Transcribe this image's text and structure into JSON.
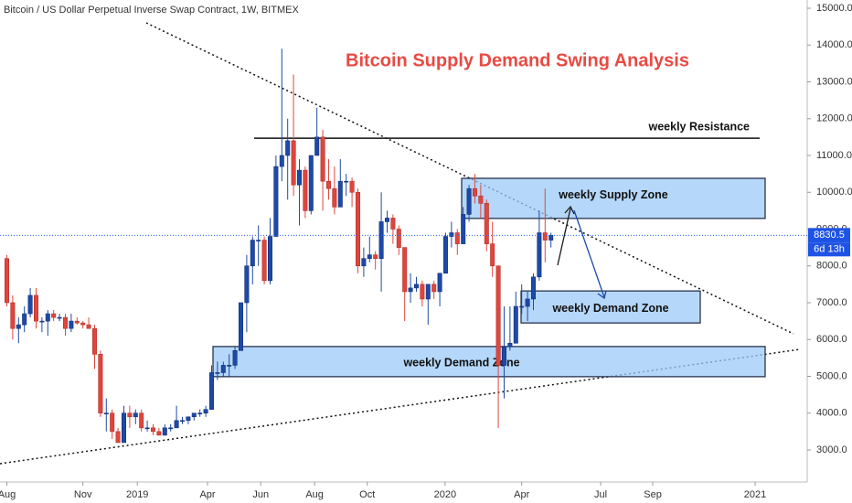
{
  "chart_data": {
    "type": "candlestick",
    "header": "Bitcoin / US Dollar Perpetual Inverse Swap Contract, 1W, BITMEX",
    "title": "Bitcoin Supply Demand Swing Analysis",
    "up_color": "#1d4aa8",
    "down_color": "#e0463d",
    "ylim": [
      2130,
      15224
    ],
    "yticks": [
      {
        "value": 3000,
        "label": "3000.0"
      },
      {
        "value": 4000,
        "label": "4000.0"
      },
      {
        "value": 5000,
        "label": "5000.0"
      },
      {
        "value": 6000,
        "label": "6000.0"
      },
      {
        "value": 7000,
        "label": "7000.0"
      },
      {
        "value": 8000,
        "label": "8000.0"
      },
      {
        "value": 9000,
        "label": "9000.0"
      },
      {
        "value": 10000,
        "label": "10000.0"
      },
      {
        "value": 11000,
        "label": "11000.0"
      },
      {
        "value": 12000,
        "label": "12000.0"
      },
      {
        "value": 13000,
        "label": "13000.0"
      },
      {
        "value": 14000,
        "label": "14000.0"
      },
      {
        "value": 15000,
        "label": "15000.0"
      }
    ],
    "xlim": [
      -1.17,
      136.8
    ],
    "xticks": [
      {
        "value": 0,
        "label": "Aug"
      },
      {
        "value": 13,
        "label": "Nov"
      },
      {
        "value": 22.3,
        "label": "2019"
      },
      {
        "value": 34.3,
        "label": "Apr"
      },
      {
        "value": 43.4,
        "label": "Jun"
      },
      {
        "value": 52.6,
        "label": "Aug"
      },
      {
        "value": 61.6,
        "label": "Oct"
      },
      {
        "value": 74.9,
        "label": "2020"
      },
      {
        "value": 88,
        "label": "Apr"
      },
      {
        "value": 101.5,
        "label": "Jul"
      },
      {
        "value": 110.4,
        "label": "Sep"
      },
      {
        "value": 127.9,
        "label": "2021"
      }
    ],
    "ohlc": [
      [
        8200,
        8300,
        6900,
        7000
      ],
      [
        7000,
        7200,
        6000,
        6300
      ],
      [
        6300,
        6600,
        5900,
        6400
      ],
      [
        6400,
        6900,
        6200,
        6700
      ],
      [
        6700,
        7400,
        6600,
        7200
      ],
      [
        7200,
        7400,
        6300,
        6500
      ],
      [
        6500,
        6600,
        6200,
        6500
      ],
      [
        6500,
        6800,
        6100,
        6700
      ],
      [
        6700,
        6800,
        6500,
        6600
      ],
      [
        6600,
        6700,
        6500,
        6600
      ],
      [
        6600,
        6700,
        6100,
        6300
      ],
      [
        6300,
        6700,
        6200,
        6500
      ],
      [
        6500,
        6600,
        6400,
        6450
      ],
      [
        6450,
        6500,
        6300,
        6400
      ],
      [
        6400,
        6600,
        6300,
        6300
      ],
      [
        6300,
        6400,
        5200,
        5600
      ],
      [
        5600,
        5700,
        3900,
        4000
      ],
      [
        4000,
        4400,
        3500,
        4000
      ],
      [
        4000,
        4100,
        3300,
        3500
      ],
      [
        3500,
        3600,
        3200,
        3200
      ],
      [
        3200,
        4200,
        3200,
        4000
      ],
      [
        4000,
        4200,
        3600,
        3900
      ],
      [
        3900,
        4100,
        3700,
        4000
      ],
      [
        4000,
        4100,
        3500,
        3600
      ],
      [
        3600,
        3800,
        3500,
        3600
      ],
      [
        3600,
        3700,
        3400,
        3500
      ],
      [
        3500,
        3600,
        3400,
        3400
      ],
      [
        3400,
        3700,
        3400,
        3600
      ],
      [
        3600,
        3700,
        3500,
        3600
      ],
      [
        3600,
        4200,
        3600,
        3800
      ],
      [
        3800,
        3900,
        3700,
        3800
      ],
      [
        3800,
        3900,
        3700,
        3900
      ],
      [
        3900,
        4000,
        3800,
        4000
      ],
      [
        4000,
        4100,
        3900,
        4000
      ],
      [
        4000,
        4200,
        3900,
        4100
      ],
      [
        4100,
        5300,
        4100,
        5100
      ],
      [
        5100,
        5400,
        4900,
        5100
      ],
      [
        5100,
        5400,
        5000,
        5300
      ],
      [
        5300,
        5600,
        5000,
        5300
      ],
      [
        5300,
        5800,
        5200,
        5700
      ],
      [
        5700,
        7000,
        5700,
        7000
      ],
      [
        7000,
        8300,
        6200,
        8000
      ],
      [
        8000,
        8800,
        7500,
        8700
      ],
      [
        8700,
        9100,
        8000,
        8700
      ],
      [
        8700,
        8800,
        7500,
        7600
      ],
      [
        7600,
        9300,
        7500,
        8800
      ],
      [
        8800,
        11000,
        8800,
        10700
      ],
      [
        10700,
        13900,
        10300,
        11000
      ],
      [
        11000,
        12000,
        9800,
        11400
      ],
      [
        11400,
        13200,
        9900,
        10200
      ],
      [
        10200,
        10900,
        9100,
        10600
      ],
      [
        10600,
        10700,
        9300,
        9500
      ],
      [
        9500,
        11000,
        9400,
        11000
      ],
      [
        11000,
        12300,
        11000,
        11500
      ],
      [
        11500,
        11700,
        9500,
        10300
      ],
      [
        10300,
        10900,
        9800,
        10100
      ],
      [
        10100,
        10700,
        9400,
        9600
      ],
      [
        9600,
        10900,
        9600,
        10300
      ],
      [
        10300,
        10500,
        9900,
        10300
      ],
      [
        10300,
        10400,
        9600,
        10000
      ],
      [
        10000,
        10100,
        7800,
        8000
      ],
      [
        8000,
        8500,
        7700,
        8200
      ],
      [
        8200,
        8800,
        8100,
        8300
      ],
      [
        8300,
        8400,
        7900,
        8200
      ],
      [
        8200,
        10000,
        7300,
        9200
      ],
      [
        9200,
        9500,
        8900,
        9300
      ],
      [
        9300,
        9400,
        8600,
        9000
      ],
      [
        9000,
        9100,
        8300,
        8500
      ],
      [
        8500,
        8500,
        6500,
        7300
      ],
      [
        7300,
        7800,
        7000,
        7400
      ],
      [
        7400,
        7700,
        7300,
        7500
      ],
      [
        7500,
        7600,
        6900,
        7100
      ],
      [
        7100,
        7500,
        6400,
        7500
      ],
      [
        7500,
        7600,
        7100,
        7300
      ],
      [
        7300,
        7800,
        6900,
        7800
      ],
      [
        7800,
        8900,
        7800,
        8800
      ],
      [
        8800,
        9200,
        8500,
        8900
      ],
      [
        8900,
        9000,
        8300,
        8600
      ],
      [
        8600,
        9600,
        8600,
        9400
      ],
      [
        9400,
        10200,
        9200,
        10100
      ],
      [
        10100,
        10500,
        9700,
        9900
      ],
      [
        9900,
        10200,
        9300,
        9700
      ],
      [
        9700,
        9800,
        8400,
        8600
      ],
      [
        8600,
        9200,
        7700,
        8000
      ],
      [
        8000,
        8000,
        3600,
        5300
      ],
      [
        5300,
        6900,
        4400,
        5800
      ],
      [
        5800,
        6900,
        5700,
        5900
      ],
      [
        5900,
        7300,
        5900,
        6900
      ],
      [
        6900,
        7500,
        6700,
        6900
      ],
      [
        6900,
        7300,
        6500,
        7100
      ],
      [
        7100,
        7800,
        6800,
        7700
      ],
      [
        7700,
        9500,
        7600,
        8900
      ],
      [
        8900,
        10100,
        8100,
        8700
      ],
      [
        8700,
        8900,
        8500,
        8830.5
      ]
    ],
    "countdown": "6d 13h",
    "resistance": {
      "label": "weekly Resistance",
      "value": 11470
    },
    "zones": [
      {
        "label": "weekly Supply Zone",
        "low": 9290,
        "high": 10380
      },
      {
        "label": "weekly Demand Zone",
        "low": 6450,
        "high": 7320
      },
      {
        "label": "weekly Demand Zone",
        "low": 4990,
        "high": 5810
      }
    ]
  }
}
